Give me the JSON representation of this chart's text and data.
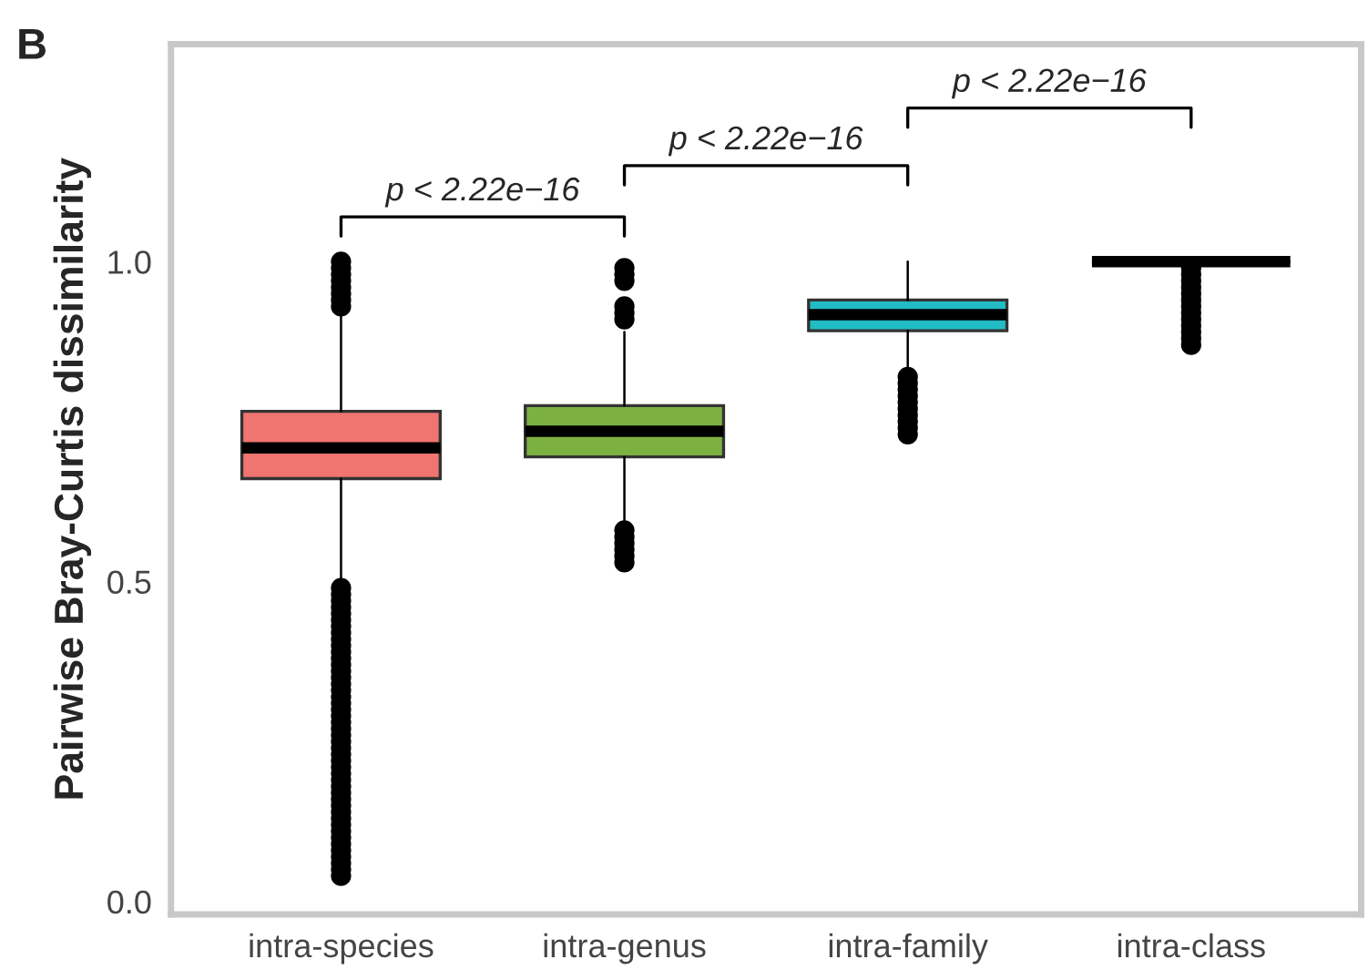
{
  "chart_data": {
    "type": "box",
    "ylabel": "Pairwise Bray-Curtis dissimilarity",
    "categories": [
      "intra-species",
      "intra-genus",
      "intra-family",
      "intra-class"
    ],
    "colors": [
      "#f07470",
      "#7cb142",
      "#22bcc4",
      "#333333"
    ],
    "boxes": [
      {
        "low": 0.5,
        "q1": 0.661,
        "median": 0.709,
        "q3": 0.766,
        "high": 0.92,
        "outliers": [
          0.04,
          0.05,
          0.06,
          0.07,
          0.08,
          0.09,
          0.1,
          0.11,
          0.12,
          0.13,
          0.14,
          0.15,
          0.16,
          0.17,
          0.18,
          0.19,
          0.2,
          0.21,
          0.22,
          0.23,
          0.24,
          0.25,
          0.26,
          0.27,
          0.28,
          0.29,
          0.3,
          0.31,
          0.32,
          0.33,
          0.34,
          0.35,
          0.36,
          0.37,
          0.38,
          0.39,
          0.4,
          0.41,
          0.42,
          0.43,
          0.44,
          0.45,
          0.46,
          0.47,
          0.48,
          0.49,
          0.93,
          0.94,
          0.95,
          0.96,
          0.97,
          0.98,
          0.99,
          1.0
        ]
      },
      {
        "low": 0.59,
        "q1": 0.695,
        "median": 0.735,
        "q3": 0.775,
        "high": 0.89,
        "outliers": [
          0.53,
          0.54,
          0.55,
          0.56,
          0.57,
          0.58,
          0.91,
          0.92,
          0.93,
          0.97,
          0.98,
          0.99
        ]
      },
      {
        "low": 0.83,
        "q1": 0.892,
        "median": 0.917,
        "q3": 0.94,
        "high": 1.0,
        "outliers": [
          0.73,
          0.74,
          0.75,
          0.76,
          0.77,
          0.78,
          0.79,
          0.8,
          0.81,
          0.82
        ]
      },
      {
        "low": 1.0,
        "q1": 1.0,
        "median": 1.0,
        "q3": 1.0,
        "high": 1.0,
        "outliers": [
          0.87,
          0.88,
          0.89,
          0.9,
          0.91,
          0.92,
          0.93,
          0.94,
          0.95,
          0.96,
          0.97,
          0.98,
          0.99
        ]
      }
    ],
    "ylim": [
      -0.02,
      1.34
    ],
    "yticks": [
      {
        "value": 0,
        "label": "0.0"
      },
      {
        "value": 0.5,
        "label": "0.5"
      },
      {
        "value": 1,
        "label": "1.0"
      }
    ],
    "grid": false,
    "annotations": [
      "B",
      "p < 2.22e−16",
      "p < 2.22e−16",
      "p < 2.22e−16"
    ]
  }
}
